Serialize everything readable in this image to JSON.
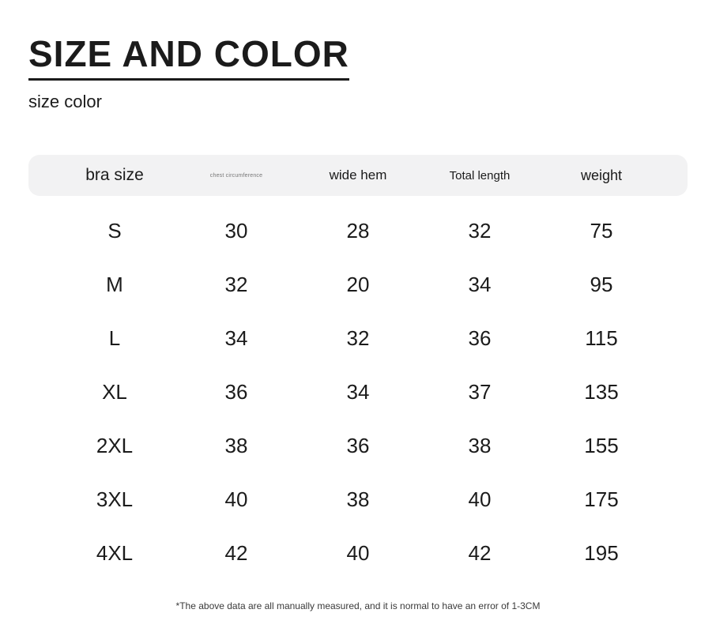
{
  "page": {
    "title": "SIZE AND COLOR",
    "subtitle": "size color",
    "footnote": "*The above data are all manually measured, and it is normal to have an error of 1-3CM"
  },
  "colors": {
    "background": "#ffffff",
    "text": "#1b1b1b",
    "header_strip_bg": "#f2f2f3",
    "chest_header_text": "#767676",
    "footnote_text": "#3a3a3a"
  },
  "table": {
    "headers": [
      "bra size",
      "chest circumference",
      "wide hem",
      "Total length",
      "weight"
    ],
    "rows": [
      [
        "S",
        "30",
        "28",
        "32",
        "75"
      ],
      [
        "M",
        "32",
        "20",
        "34",
        "95"
      ],
      [
        "L",
        "34",
        "32",
        "36",
        "115"
      ],
      [
        "XL",
        "36",
        "34",
        "37",
        "135"
      ],
      [
        "2XL",
        "38",
        "36",
        "38",
        "155"
      ],
      [
        "3XL",
        "40",
        "38",
        "40",
        "175"
      ],
      [
        "4XL",
        "42",
        "40",
        "42",
        "195"
      ]
    ]
  },
  "chart_data": {
    "type": "table",
    "title": "SIZE AND COLOR",
    "subtitle": "size color",
    "columns": [
      "bra size",
      "chest circumference",
      "wide hem",
      "Total length",
      "weight"
    ],
    "rows": [
      [
        "S",
        30,
        28,
        32,
        75
      ],
      [
        "M",
        32,
        20,
        34,
        95
      ],
      [
        "L",
        34,
        32,
        36,
        115
      ],
      [
        "XL",
        36,
        34,
        37,
        135
      ],
      [
        "2XL",
        38,
        36,
        38,
        155
      ],
      [
        "3XL",
        40,
        38,
        40,
        175
      ],
      [
        "4XL",
        42,
        40,
        42,
        195
      ]
    ],
    "annotation": "*The above data are all manually measured, and it is normal to have an error of 1-3CM"
  }
}
